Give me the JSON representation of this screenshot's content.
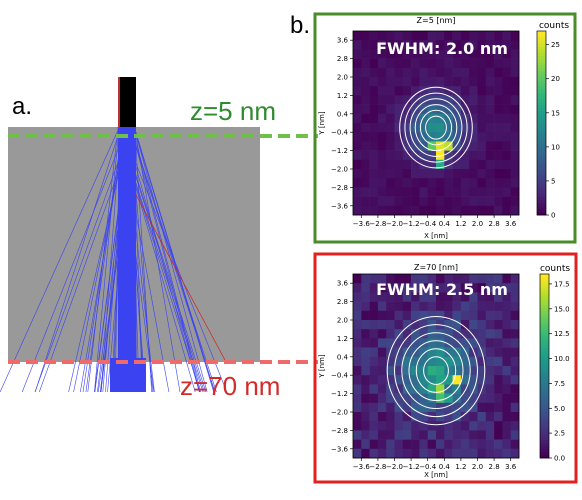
{
  "panel_a": {
    "label": "a.",
    "z_top_label": "z=5 nm",
    "z_bottom_label": "z=70 nm",
    "colors": {
      "sample": "#999999",
      "beam": "#3b43f0",
      "tip": "#000000",
      "z_top": "#6fbf4a",
      "z_bottom": "#ef6a6a"
    }
  },
  "panel_b": {
    "label": "b."
  },
  "chart_data": [
    {
      "type": "heatmap",
      "title": "Z=5 [nm]",
      "annotation": "FWHM: 2.0 nm",
      "xlabel": "X [nm]",
      "ylabel": "Y [nm]",
      "xlim": [
        -4.0,
        4.0
      ],
      "ylim": [
        -4.0,
        4.0
      ],
      "xticks": [
        "−3.6",
        "−2.8",
        "−2.0",
        "−1.2",
        "−0.4",
        "0.4",
        "1.2",
        "2.0",
        "2.8",
        "3.6"
      ],
      "yticks": [
        "3.6",
        "2.8",
        "2.0",
        "1.2",
        "0.4",
        "−0.4",
        "−1.2",
        "−2.0",
        "−2.8",
        "−3.6"
      ],
      "colorbar_label": "counts",
      "colorbar_ticks": [
        "0",
        "5",
        "10",
        "15",
        "20",
        "25"
      ],
      "vmin": 0,
      "vmax": 27,
      "colormap": "viridis",
      "frame_color": "#4a8c2a",
      "contour_color": "#ffffff",
      "contour_center": [
        0,
        -0.2
      ],
      "contour_radii_nm": [
        0.5,
        0.75,
        1.0,
        1.25,
        1.5,
        1.75
      ]
    },
    {
      "type": "heatmap",
      "title": "Z=70 [nm]",
      "annotation": "FWHM: 2.5 nm",
      "xlabel": "X [nm]",
      "ylabel": "Y [nm]",
      "xlim": [
        -4.0,
        4.0
      ],
      "ylim": [
        -4.0,
        4.0
      ],
      "xticks": [
        "−3.6",
        "−2.8",
        "−2.0",
        "−1.2",
        "−0.4",
        "0.4",
        "1.2",
        "2.0",
        "2.8",
        "3.6"
      ],
      "yticks": [
        "3.6",
        "2.8",
        "2.0",
        "1.2",
        "0.4",
        "−0.4",
        "−1.2",
        "−2.0",
        "−2.8",
        "−3.6"
      ],
      "colorbar_label": "counts",
      "colorbar_ticks": [
        "0.0",
        "2.5",
        "5.0",
        "7.5",
        "10.0",
        "12.5",
        "15.0",
        "17.5"
      ],
      "vmin": 0,
      "vmax": 18.5,
      "colormap": "viridis",
      "frame_color": "#e32020",
      "contour_color": "#ffffff",
      "contour_center": [
        0,
        -0.2
      ],
      "contour_radii_nm": [
        0.6,
        0.95,
        1.3,
        1.65,
        2.0,
        2.35
      ]
    }
  ]
}
